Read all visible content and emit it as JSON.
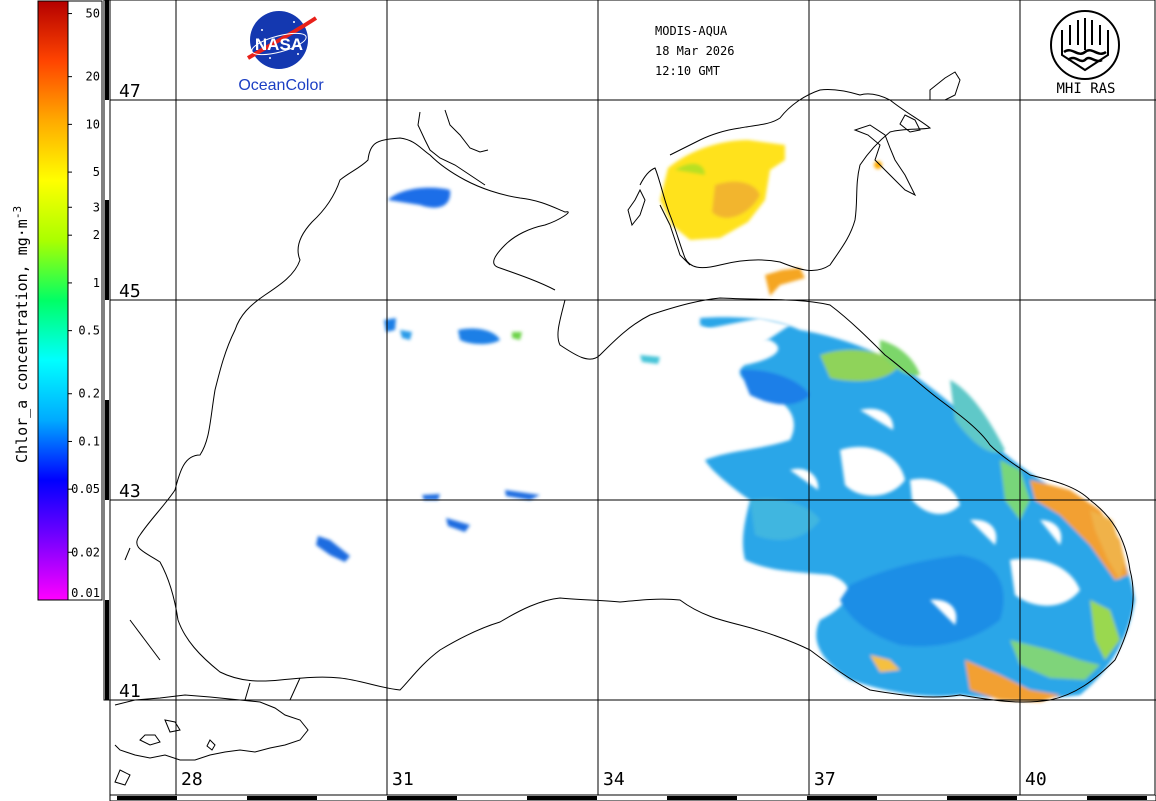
{
  "header": {
    "sensor": "MODIS-AQUA",
    "date": "18 Mar 2026",
    "time": "12:10 GMT"
  },
  "logos": {
    "nasa_text": "NASA",
    "oceancolor_label": "OceanColor",
    "mhi_label": "MHI RAS"
  },
  "colorbar": {
    "title": "Chlor_a concentration, mg·m",
    "title_exponent": "-3",
    "ticks": [
      "50",
      "20",
      "10",
      "5",
      "3",
      "2",
      "1",
      "0.5",
      "0.2",
      "0.1",
      "0.05",
      "0.02",
      "0.01"
    ],
    "tick_values": [
      50,
      20,
      10,
      5,
      3,
      2,
      1,
      0.5,
      0.2,
      0.1,
      0.05,
      0.02,
      0.01
    ],
    "range": [
      0.01,
      60
    ],
    "scale": "log",
    "colors": [
      "#ff00ff",
      "#7a00ff",
      "#0000ff",
      "#00aaff",
      "#00ffff",
      "#00ff66",
      "#aaff00",
      "#ffff00",
      "#ffaa00",
      "#ff4400",
      "#b40000"
    ]
  },
  "map": {
    "lat_labels": [
      "47",
      "45",
      "43",
      "41"
    ],
    "lat_values": [
      47,
      45,
      43,
      41
    ],
    "lon_labels": [
      "28",
      "31",
      "34",
      "37",
      "40"
    ],
    "lon_values": [
      28,
      31,
      34,
      37,
      40
    ]
  }
}
